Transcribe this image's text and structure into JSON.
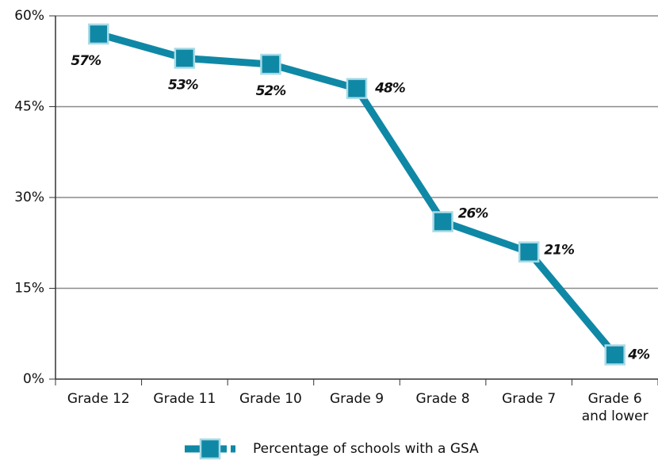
{
  "chart_data": {
    "type": "line",
    "categories": [
      "Grade 12",
      "Grade 11",
      "Grade 10",
      "Grade 9",
      "Grade 8",
      "Grade 7",
      "Grade 6 and lower"
    ],
    "series": [
      {
        "name": "Percentage of schools with a GSA",
        "color": "#0f88a6",
        "values": [
          57,
          53,
          52,
          48,
          26,
          21,
          4
        ],
        "value_labels": [
          "57%",
          "53%",
          "52%",
          "48%",
          "26%",
          "21%",
          "4%"
        ]
      }
    ],
    "ylim": [
      0,
      60
    ],
    "yticks": [
      {
        "value": 0,
        "label": "0%"
      },
      {
        "value": 15,
        "label": "15%"
      },
      {
        "value": 30,
        "label": "30%"
      },
      {
        "value": 45,
        "label": "45%"
      },
      {
        "value": 60,
        "label": "60%"
      }
    ],
    "grid": true,
    "legend": "bottom"
  }
}
